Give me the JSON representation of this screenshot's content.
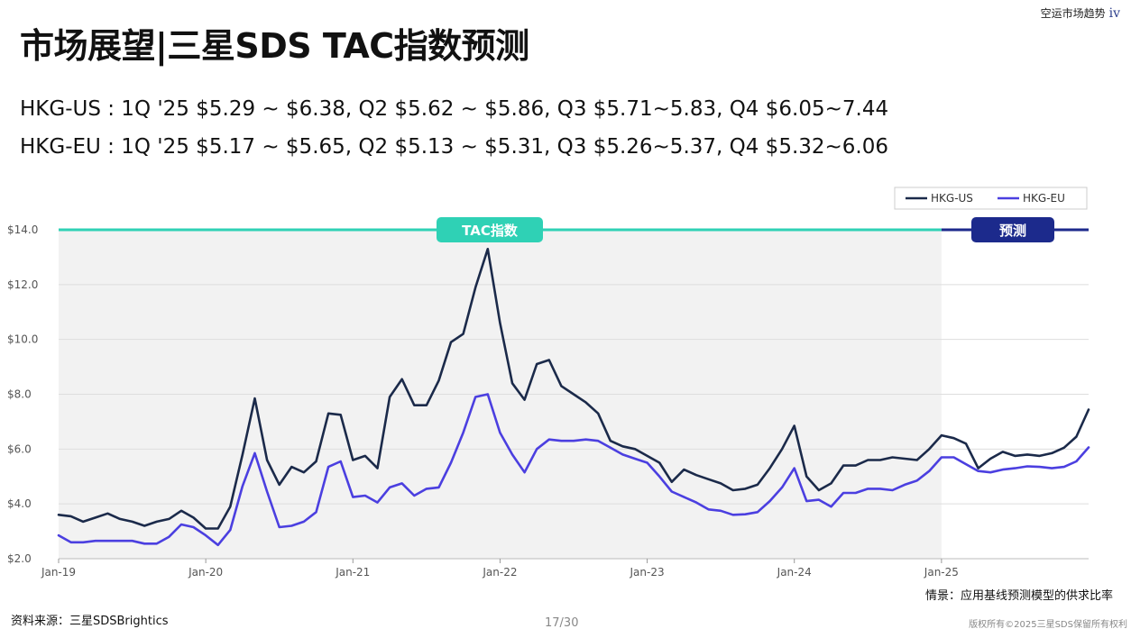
{
  "brand": {
    "text": "空运市场趋势",
    "mark": "iv"
  },
  "title": "市场展望|三星SDS TAC指数预测",
  "subtitles": [
    "HKG-US : 1Q '25 $5.29 ~ $6.38, Q2 $5.62 ~ $5.86, Q3 $5.71~5.83, Q4 $6.05~7.44",
    "HKG-EU : 1Q '25 $5.17 ~ $5.65, Q2 $5.13 ~ $5.31, Q3 $5.26~5.37, Q4 $5.32~6.06"
  ],
  "chart_data": {
    "type": "line",
    "title": "",
    "xlabel": "",
    "ylabel": "",
    "ylim": [
      2,
      14
    ],
    "yticks": [
      "$2.0",
      "$4.0",
      "$6.0",
      "$8.0",
      "$10.0",
      "$12.0",
      "$14.0"
    ],
    "xticks": [
      "Jan-19",
      "Jan-20",
      "Jan-21",
      "Jan-22",
      "Jan-23",
      "Jan-24",
      "Jan-25"
    ],
    "x_start": "2019-01",
    "grid": true,
    "legend_position": "top-right",
    "banners": {
      "history": "TAC指数",
      "forecast": "预测"
    },
    "forecast_start": "2025-01",
    "colors": {
      "HKG-US": "#1b2a4a",
      "HKG-EU": "#4b3fe0",
      "history_band": "#2fd1b5",
      "forecast_band": "#1c2a8c",
      "history_bg": "#f2f2f2"
    },
    "series": [
      {
        "name": "HKG-US",
        "values": [
          3.6,
          3.55,
          3.35,
          3.5,
          3.65,
          3.45,
          3.35,
          3.2,
          3.35,
          3.45,
          3.75,
          3.5,
          3.1,
          3.1,
          3.9,
          5.8,
          7.85,
          5.6,
          4.7,
          5.35,
          5.15,
          5.55,
          7.3,
          7.25,
          5.6,
          5.75,
          5.3,
          7.9,
          8.55,
          7.6,
          7.6,
          8.5,
          9.9,
          10.2,
          11.9,
          13.3,
          10.6,
          8.4,
          7.8,
          9.1,
          9.25,
          8.3,
          8.0,
          7.7,
          7.3,
          6.3,
          6.1,
          6.0,
          5.75,
          5.5,
          4.8,
          5.25,
          5.05,
          4.9,
          4.75,
          4.5,
          4.55,
          4.7,
          5.3,
          6.0,
          6.85,
          5.0,
          4.5,
          4.75,
          5.4,
          5.4,
          5.6,
          5.6,
          5.7,
          5.65,
          5.6,
          6.0,
          6.5,
          6.4,
          6.2,
          5.3,
          5.65,
          5.9,
          5.75,
          5.8,
          5.75,
          5.85,
          6.05,
          6.45,
          7.44
        ]
      },
      {
        "name": "HKG-EU",
        "values": [
          2.85,
          2.6,
          2.6,
          2.65,
          2.65,
          2.65,
          2.65,
          2.55,
          2.55,
          2.8,
          3.25,
          3.15,
          2.85,
          2.5,
          3.05,
          4.65,
          5.85,
          4.45,
          3.15,
          3.2,
          3.35,
          3.7,
          5.35,
          5.55,
          4.25,
          4.3,
          4.05,
          4.6,
          4.75,
          4.3,
          4.55,
          4.6,
          5.5,
          6.6,
          7.9,
          8.0,
          6.6,
          5.8,
          5.15,
          6.0,
          6.35,
          6.3,
          6.3,
          6.35,
          6.3,
          6.05,
          5.8,
          5.65,
          5.5,
          5.0,
          4.45,
          4.25,
          4.05,
          3.8,
          3.75,
          3.6,
          3.62,
          3.7,
          4.1,
          4.6,
          5.3,
          4.1,
          4.15,
          3.9,
          4.4,
          4.4,
          4.55,
          4.55,
          4.5,
          4.7,
          4.85,
          5.2,
          5.7,
          5.7,
          5.45,
          5.2,
          5.15,
          5.25,
          5.3,
          5.37,
          5.35,
          5.3,
          5.35,
          5.55,
          6.06
        ]
      }
    ]
  },
  "footer": {
    "scenario": "情景：应用基线预测模型的供求比率",
    "source": "资料来源：三星SDSBrightics",
    "page": "17/30",
    "copyright": "版权所有©2025三星SDS保留所有权利"
  }
}
